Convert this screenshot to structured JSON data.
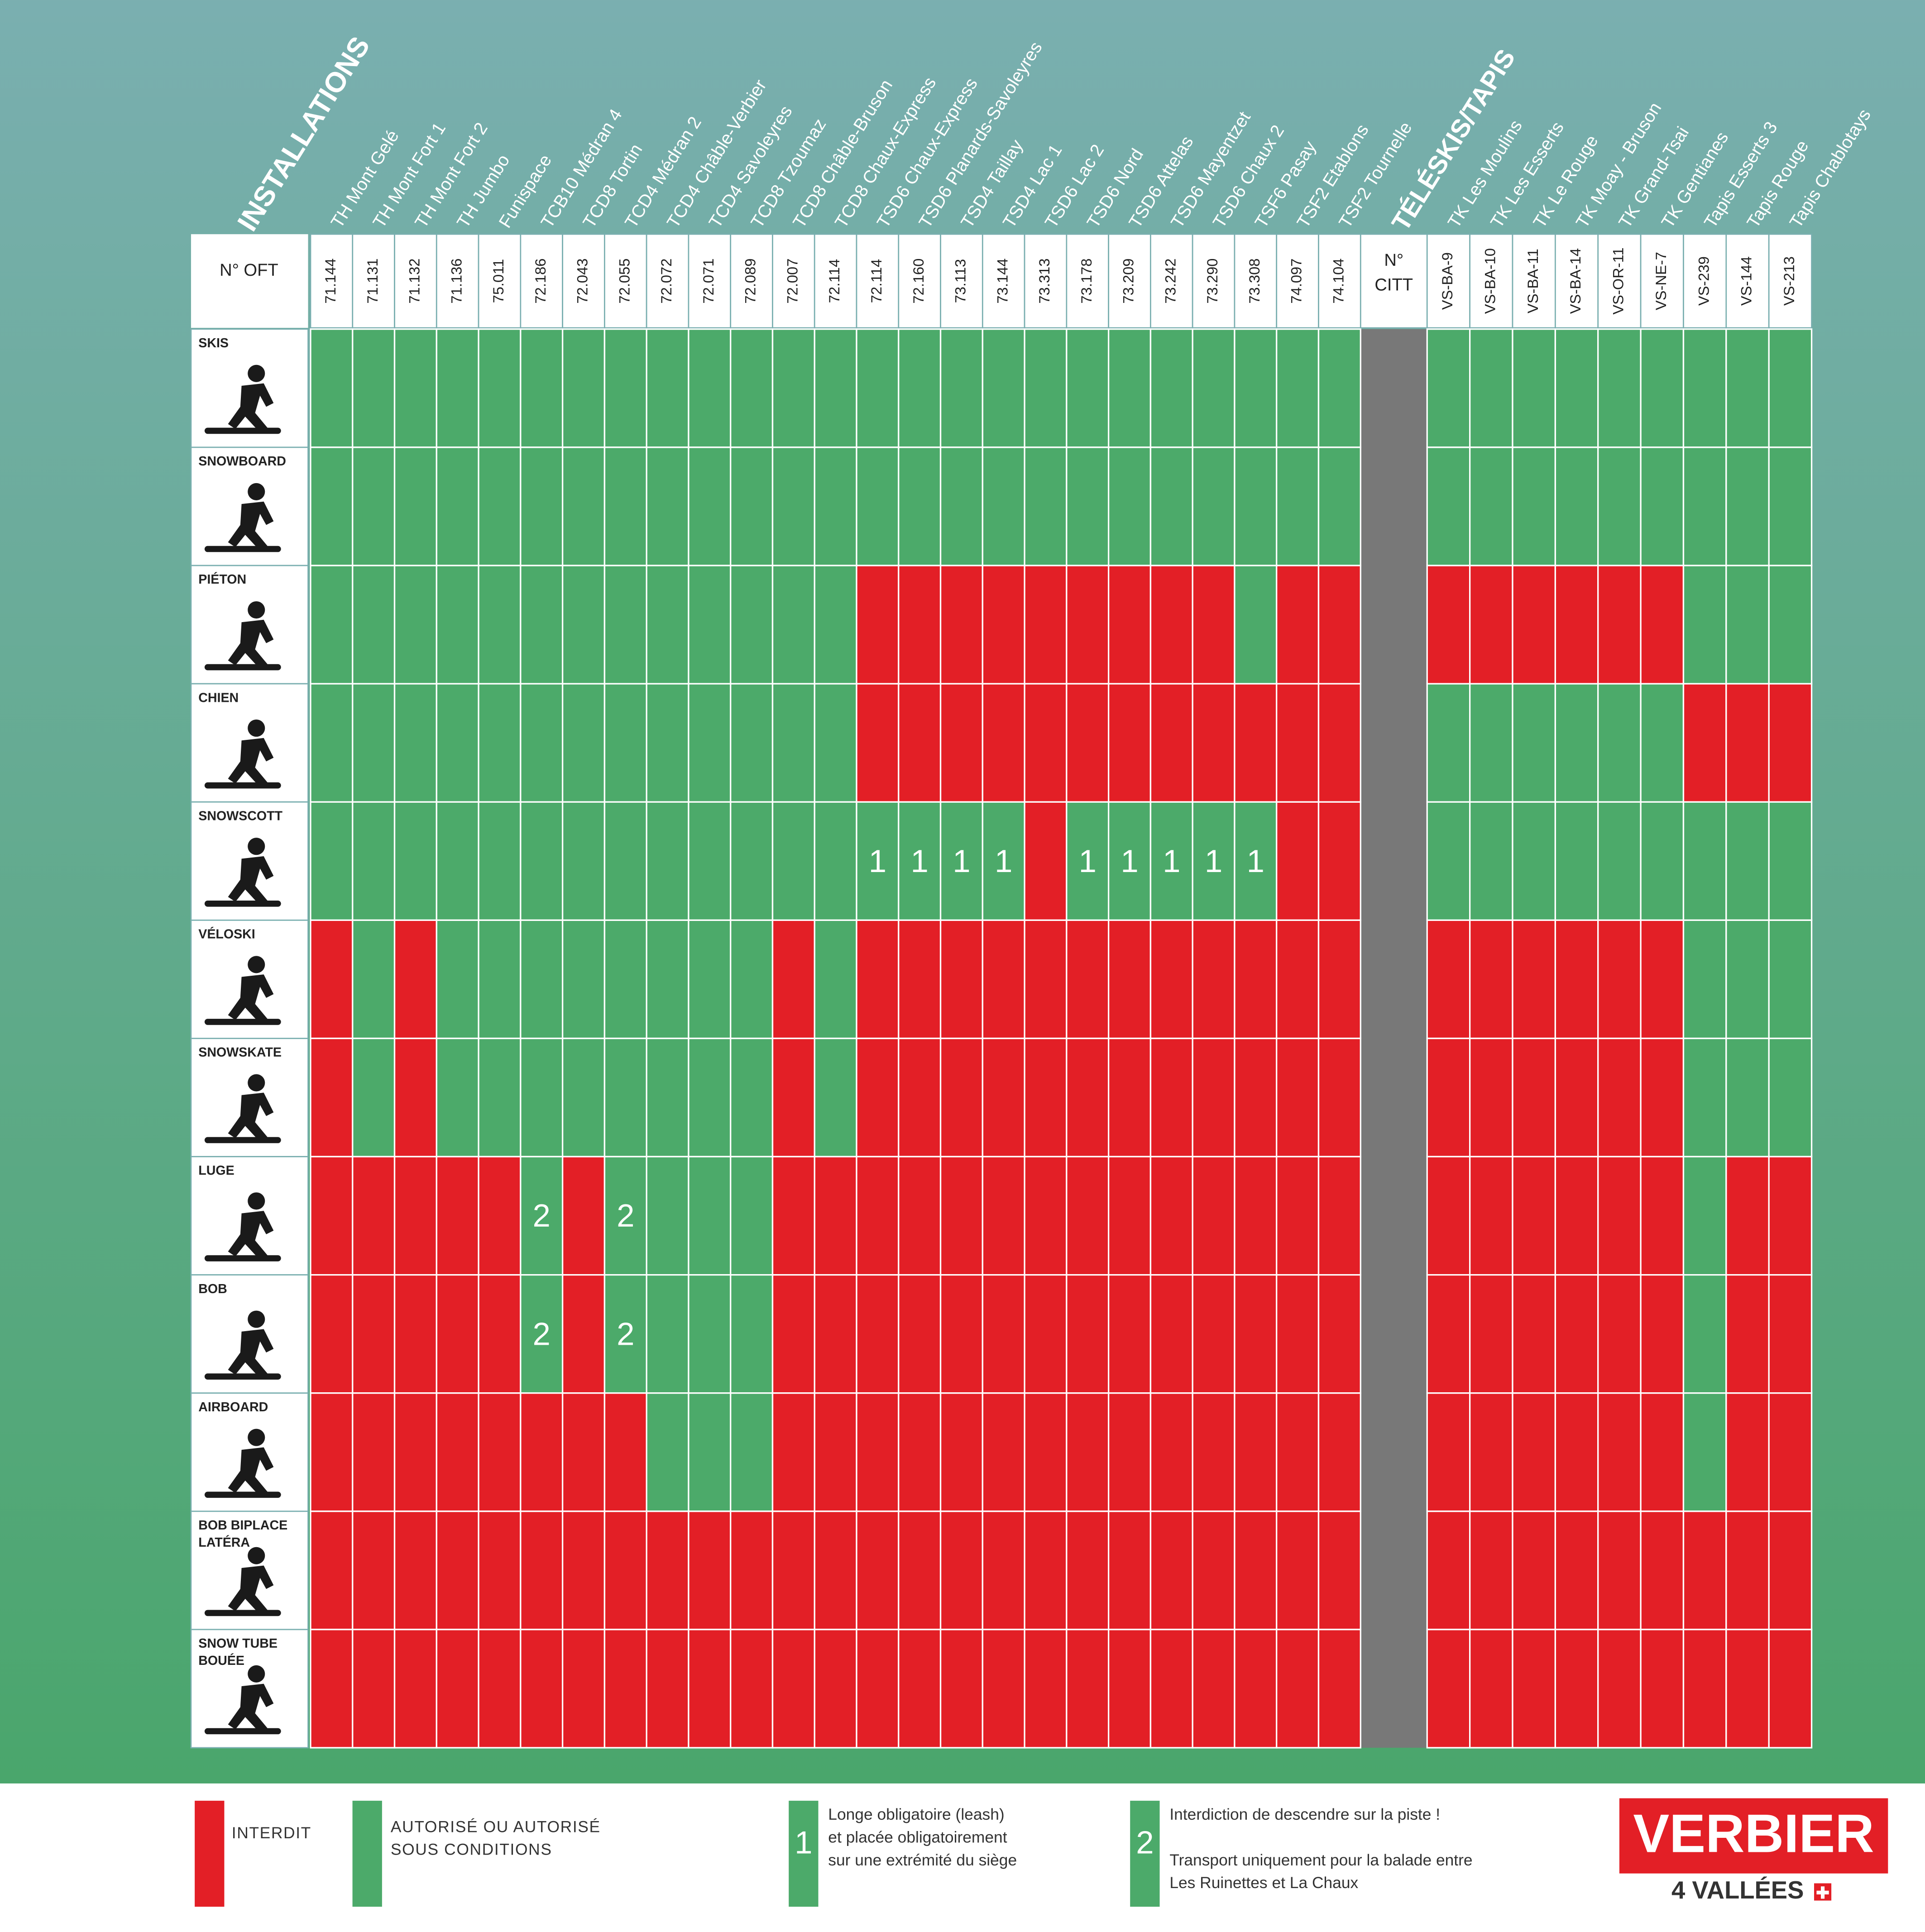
{
  "header": {
    "installations_title": "INSTALLATIONS",
    "teleskis_title": "TÉLÉSKIS/TAPIS",
    "oft_label": "N° OFT",
    "citt_label": [
      "N°",
      "CITT"
    ]
  },
  "installations": [
    {
      "name": "TH Mont Gelé",
      "code": "71.144"
    },
    {
      "name": "TH Mont Fort 1",
      "code": "71.131"
    },
    {
      "name": "TH Mont Fort 2",
      "code": "71.132"
    },
    {
      "name": "TH Jumbo",
      "code": "71.136"
    },
    {
      "name": "Funispace",
      "code": "75.011"
    },
    {
      "name": "TCB10 Médran 4",
      "code": "72.186"
    },
    {
      "name": "TCD8 Tortin",
      "code": "72.043"
    },
    {
      "name": "TCD4 Médran 2",
      "code": "72.055"
    },
    {
      "name": "TCD4 Châble-Verbier",
      "code": "72.072"
    },
    {
      "name": "TCD4 Savoleyres",
      "code": "72.071"
    },
    {
      "name": "TCD8 Tzoumaz",
      "code": "72.089"
    },
    {
      "name": "TCD8 Châble-Bruson",
      "code": "72.007"
    },
    {
      "name": "TCD8 Chaux-Express",
      "code": "72.114"
    },
    {
      "name": "TSD6 Chaux-Express",
      "code": "72.114"
    },
    {
      "name": "TSD6 Planards-Savoleyres",
      "code": "72.160"
    },
    {
      "name": "TSD4 Taillay",
      "code": "73.113"
    },
    {
      "name": "TSD4 Lac 1",
      "code": "73.144"
    },
    {
      "name": "TSD6 Lac 2",
      "code": "73.313"
    },
    {
      "name": "TSD6 Nord",
      "code": "73.178"
    },
    {
      "name": "TSD6 Attelas",
      "code": "73.209"
    },
    {
      "name": "TSD6 Mayentzet",
      "code": "73.242"
    },
    {
      "name": "TSD6 Chaux 2",
      "code": "73.290"
    },
    {
      "name": "TSF6 Pasay",
      "code": "73.308"
    },
    {
      "name": "TSF2 Etablons",
      "code": "74.097"
    },
    {
      "name": "TSF2 Tournelle",
      "code": "74.104"
    }
  ],
  "teleskis": [
    {
      "name": "TK Les Moulins",
      "code": "VS-BA-9"
    },
    {
      "name": "TK Les Esserts",
      "code": "VS-BA-10"
    },
    {
      "name": "TK Le Rouge",
      "code": "VS-BA-11"
    },
    {
      "name": "TK Moay - Bruson",
      "code": "VS-BA-14"
    },
    {
      "name": "TK Grand-Tsai",
      "code": "VS-OR-11"
    },
    {
      "name": "TK Gentianes",
      "code": "VS-NE-7"
    },
    {
      "name": "Tapis Esserts 3",
      "code": "VS-239"
    },
    {
      "name": "Tapis Rouge",
      "code": "VS-144"
    },
    {
      "name": "Tapis Chablotays",
      "code": "VS-213"
    }
  ],
  "rows": [
    {
      "label": [
        "SKIS"
      ],
      "installations": [
        "#4caa6a",
        "#4caa6a",
        "#4caa6a",
        "#4caa6a",
        "#4caa6a",
        "#4caa6a",
        "#4caa6a",
        "#4caa6a",
        "#4caa6a",
        "#4caa6a",
        "#4caa6a",
        "#4caa6a",
        "#4caa6a",
        "#4caa6a",
        "#4caa6a",
        "#4caa6a",
        "#4caa6a",
        "#4caa6a",
        "#4caa6a",
        "#4caa6a",
        "#4caa6a",
        "#4caa6a",
        "#4caa6a",
        "#4caa6a",
        "#4caa6a"
      ],
      "teleskis": [
        "#4caa6a",
        "#4caa6a",
        "#4caa6a",
        "#4caa6a",
        "#4caa6a",
        "#4caa6a",
        "#4caa6a",
        "#4caa6a",
        "#4caa6a"
      ]
    },
    {
      "label": [
        "SNOWBOARD"
      ],
      "installations": [
        "#4caa6a",
        "#4caa6a",
        "#4caa6a",
        "#4caa6a",
        "#4caa6a",
        "#4caa6a",
        "#4caa6a",
        "#4caa6a",
        "#4caa6a",
        "#4caa6a",
        "#4caa6a",
        "#4caa6a",
        "#4caa6a",
        "#4caa6a",
        "#4caa6a",
        "#4caa6a",
        "#4caa6a",
        "#4caa6a",
        "#4caa6a",
        "#4caa6a",
        "#4caa6a",
        "#4caa6a",
        "#4caa6a",
        "#4caa6a",
        "#4caa6a"
      ],
      "teleskis": [
        "#4caa6a",
        "#4caa6a",
        "#4caa6a",
        "#4caa6a",
        "#4caa6a",
        "#4caa6a",
        "#4caa6a",
        "#4caa6a",
        "#4caa6a"
      ]
    },
    {
      "label": [
        "PIÉTON"
      ],
      "installations": [
        "#4caa6a",
        "#4caa6a",
        "#4caa6a",
        "#4caa6a",
        "#4caa6a",
        "#4caa6a",
        "#4caa6a",
        "#4caa6a",
        "#4caa6a",
        "#4caa6a",
        "#4caa6a",
        "#4caa6a",
        "#4caa6a",
        "#e31f26",
        "#e31f26",
        "#e31f26",
        "#e31f26",
        "#e31f26",
        "#e31f26",
        "#e31f26",
        "#e31f26",
        "#e31f26",
        "#4caa6a",
        "#e31f26",
        "#e31f26"
      ],
      "teleskis": [
        "#e31f26",
        "#e31f26",
        "#e31f26",
        "#e31f26",
        "#e31f26",
        "#e31f26",
        "#4caa6a",
        "#4caa6a",
        "#4caa6a"
      ]
    },
    {
      "label": [
        "CHIEN"
      ],
      "installations": [
        "#4caa6a",
        "#4caa6a",
        "#4caa6a",
        "#4caa6a",
        "#4caa6a",
        "#4caa6a",
        "#4caa6a",
        "#4caa6a",
        "#4caa6a",
        "#4caa6a",
        "#4caa6a",
        "#4caa6a",
        "#4caa6a",
        "#e31f26",
        "#e31f26",
        "#e31f26",
        "#e31f26",
        "#e31f26",
        "#e31f26",
        "#e31f26",
        "#e31f26",
        "#e31f26",
        "#e31f26",
        "#e31f26",
        "#e31f26"
      ],
      "teleskis": [
        "#4caa6a",
        "#4caa6a",
        "#4caa6a",
        "#4caa6a",
        "#4caa6a",
        "#4caa6a",
        "#e31f26",
        "#e31f26",
        "#e31f26"
      ]
    },
    {
      "label": [
        "SNOWSCOTT"
      ],
      "installations": [
        "#4caa6a",
        "#4caa6a",
        "#4caa6a",
        "#4caa6a",
        "#4caa6a",
        "#4caa6a",
        "#4caa6a",
        "#4caa6a",
        "#4caa6a",
        "#4caa6a",
        "#4caa6a",
        "#4caa6a",
        "#4caa6a",
        "1",
        "1",
        "1",
        "1",
        "#e31f26",
        "1",
        "1",
        "1",
        "1",
        "1",
        "#e31f26",
        "#e31f26"
      ],
      "teleskis": [
        "#4caa6a",
        "#4caa6a",
        "#4caa6a",
        "#4caa6a",
        "#4caa6a",
        "#4caa6a",
        "#4caa6a",
        "#4caa6a",
        "#4caa6a"
      ]
    },
    {
      "label": [
        "VÉLOSKI"
      ],
      "installations": [
        "#e31f26",
        "#4caa6a",
        "#e31f26",
        "#4caa6a",
        "#4caa6a",
        "#4caa6a",
        "#4caa6a",
        "#4caa6a",
        "#4caa6a",
        "#4caa6a",
        "#4caa6a",
        "#e31f26",
        "#4caa6a",
        "#e31f26",
        "#e31f26",
        "#e31f26",
        "#e31f26",
        "#e31f26",
        "#e31f26",
        "#e31f26",
        "#e31f26",
        "#e31f26",
        "#e31f26",
        "#e31f26",
        "#e31f26"
      ],
      "teleskis": [
        "#e31f26",
        "#e31f26",
        "#e31f26",
        "#e31f26",
        "#e31f26",
        "#e31f26",
        "#4caa6a",
        "#4caa6a",
        "#4caa6a"
      ]
    },
    {
      "label": [
        "SNOWSKATE"
      ],
      "installations": [
        "#e31f26",
        "#4caa6a",
        "#e31f26",
        "#4caa6a",
        "#4caa6a",
        "#4caa6a",
        "#4caa6a",
        "#4caa6a",
        "#4caa6a",
        "#4caa6a",
        "#4caa6a",
        "#e31f26",
        "#4caa6a",
        "#e31f26",
        "#e31f26",
        "#e31f26",
        "#e31f26",
        "#e31f26",
        "#e31f26",
        "#e31f26",
        "#e31f26",
        "#e31f26",
        "#e31f26",
        "#e31f26",
        "#e31f26"
      ],
      "teleskis": [
        "#e31f26",
        "#e31f26",
        "#e31f26",
        "#e31f26",
        "#e31f26",
        "#e31f26",
        "#4caa6a",
        "#4caa6a",
        "#4caa6a"
      ]
    },
    {
      "label": [
        "LUGE"
      ],
      "installations": [
        "#e31f26",
        "#e31f26",
        "#e31f26",
        "#e31f26",
        "#e31f26",
        "2",
        "#e31f26",
        "2",
        "#4caa6a",
        "#4caa6a",
        "#4caa6a",
        "#e31f26",
        "#e31f26",
        "#e31f26",
        "#e31f26",
        "#e31f26",
        "#e31f26",
        "#e31f26",
        "#e31f26",
        "#e31f26",
        "#e31f26",
        "#e31f26",
        "#e31f26",
        "#e31f26",
        "#e31f26"
      ],
      "teleskis": [
        "#e31f26",
        "#e31f26",
        "#e31f26",
        "#e31f26",
        "#e31f26",
        "#e31f26",
        "#4caa6a",
        "#e31f26",
        "#e31f26"
      ]
    },
    {
      "label": [
        "BOB"
      ],
      "installations": [
        "#e31f26",
        "#e31f26",
        "#e31f26",
        "#e31f26",
        "#e31f26",
        "2",
        "#e31f26",
        "2",
        "#4caa6a",
        "#4caa6a",
        "#4caa6a",
        "#e31f26",
        "#e31f26",
        "#e31f26",
        "#e31f26",
        "#e31f26",
        "#e31f26",
        "#e31f26",
        "#e31f26",
        "#e31f26",
        "#e31f26",
        "#e31f26",
        "#e31f26",
        "#e31f26",
        "#e31f26"
      ],
      "teleskis": [
        "#e31f26",
        "#e31f26",
        "#e31f26",
        "#e31f26",
        "#e31f26",
        "#e31f26",
        "#4caa6a",
        "#e31f26",
        "#e31f26"
      ]
    },
    {
      "label": [
        "AIRBOARD"
      ],
      "installations": [
        "#e31f26",
        "#e31f26",
        "#e31f26",
        "#e31f26",
        "#e31f26",
        "#e31f26",
        "#e31f26",
        "#e31f26",
        "#4caa6a",
        "#4caa6a",
        "#4caa6a",
        "#e31f26",
        "#e31f26",
        "#e31f26",
        "#e31f26",
        "#e31f26",
        "#e31f26",
        "#e31f26",
        "#e31f26",
        "#e31f26",
        "#e31f26",
        "#e31f26",
        "#e31f26",
        "#e31f26",
        "#e31f26"
      ],
      "teleskis": [
        "#e31f26",
        "#e31f26",
        "#e31f26",
        "#e31f26",
        "#e31f26",
        "#e31f26",
        "#4caa6a",
        "#e31f26",
        "#e31f26"
      ]
    },
    {
      "label": [
        "BOB BIPLACE",
        "LATÉRA"
      ],
      "installations": [
        "#e31f26",
        "#e31f26",
        "#e31f26",
        "#e31f26",
        "#e31f26",
        "#e31f26",
        "#e31f26",
        "#e31f26",
        "#e31f26",
        "#e31f26",
        "#e31f26",
        "#e31f26",
        "#e31f26",
        "#e31f26",
        "#e31f26",
        "#e31f26",
        "#e31f26",
        "#e31f26",
        "#e31f26",
        "#e31f26",
        "#e31f26",
        "#e31f26",
        "#e31f26",
        "#e31f26",
        "#e31f26"
      ],
      "teleskis": [
        "#e31f26",
        "#e31f26",
        "#e31f26",
        "#e31f26",
        "#e31f26",
        "#e31f26",
        "#e31f26",
        "#e31f26",
        "#e31f26"
      ]
    },
    {
      "label": [
        "SNOW TUBE",
        "BOUÉE"
      ],
      "installations": [
        "#e31f26",
        "#e31f26",
        "#e31f26",
        "#e31f26",
        "#e31f26",
        "#e31f26",
        "#e31f26",
        "#e31f26",
        "#e31f26",
        "#e31f26",
        "#e31f26",
        "#e31f26",
        "#e31f26",
        "#e31f26",
        "#e31f26",
        "#e31f26",
        "#e31f26",
        "#e31f26",
        "#e31f26",
        "#e31f26",
        "#e31f26",
        "#e31f26",
        "#e31f26",
        "#e31f26",
        "#e31f26"
      ],
      "teleskis": [
        "#e31f26",
        "#e31f26",
        "#e31f26",
        "#e31f26",
        "#e31f26",
        "#e31f26",
        "#e31f26",
        "#e31f26",
        "#e31f26"
      ]
    }
  ],
  "legend": [
    {
      "color": "#e31f26",
      "label": [
        "INTERDIT"
      ]
    },
    {
      "color": "#4caa6a",
      "label": [
        "AUTORISÉ OU AUTORISÉ",
        "SOUS CONDITIONS"
      ]
    },
    {
      "color": "#4caa6a",
      "mark": "1",
      "label": [
        "Longe obligatoire (leash)",
        "et placée obligatoirement",
        "sur une extrémité du siège"
      ]
    },
    {
      "color": "#4caa6a",
      "mark": "2",
      "label": [
        "Interdiction de descendre sur la piste !"
      ],
      "detail": [
        "Transport uniquement pour la balade entre",
        "Les Ruinettes et La Chaux"
      ]
    }
  ],
  "logo": {
    "name": "VERBIER",
    "region": "4 VALLÉES"
  }
}
